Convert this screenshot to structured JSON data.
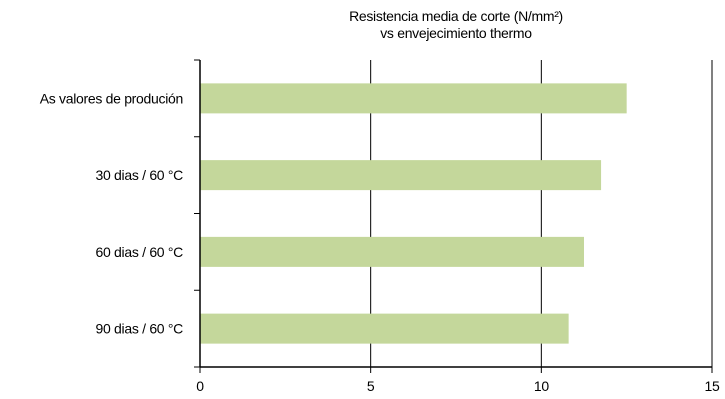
{
  "chart_data": {
    "type": "bar",
    "orientation": "horizontal",
    "title_line1": "Resistencia media de corte (N/mm²)",
    "title_line2": "vs envejecimiento thermo",
    "categories": [
      "As valores de produción",
      "30 dias / 60 °C",
      "60 dias / 60 °C",
      "90 dias / 60 °C"
    ],
    "values": [
      12.5,
      11.75,
      11.25,
      10.8
    ],
    "xlim": [
      0,
      15
    ],
    "xticks": [
      0,
      5,
      10,
      15
    ],
    "grid": true,
    "bar_color": "#c4d79b",
    "legend": "none"
  }
}
